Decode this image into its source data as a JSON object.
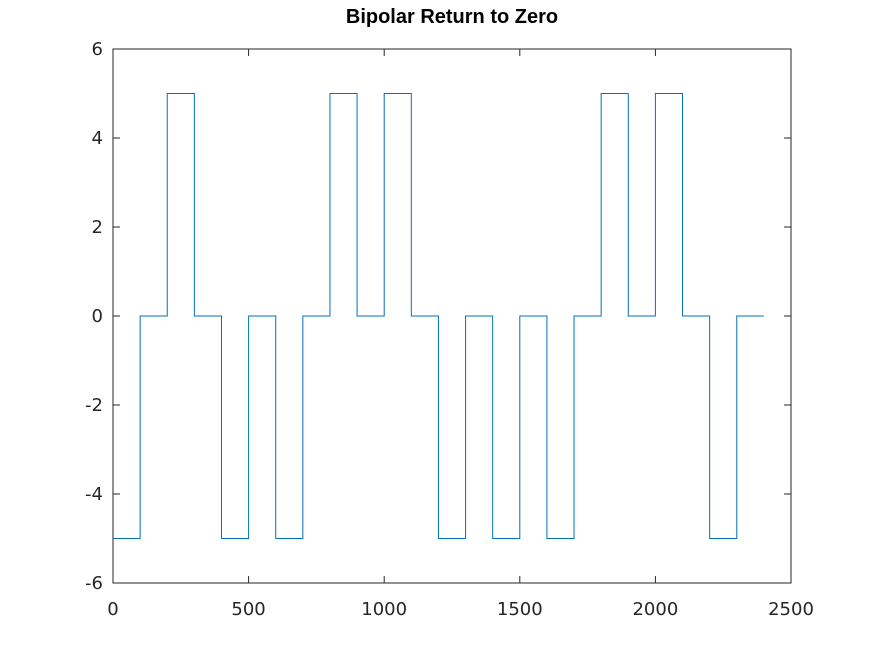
{
  "chart_data": {
    "type": "line",
    "title": "Bipolar Return to Zero",
    "xlabel": "",
    "ylabel": "",
    "xlim": [
      0,
      2500
    ],
    "ylim": [
      -6,
      6
    ],
    "xticks": [
      0,
      500,
      1000,
      1500,
      2000,
      2500
    ],
    "yticks": [
      -6,
      -4,
      -2,
      0,
      2,
      4,
      6
    ],
    "xtick_labels": [
      "0",
      "500",
      "1000",
      "1500",
      "2000",
      "2500"
    ],
    "ytick_labels": [
      "-6",
      "-4",
      "-2",
      "0",
      "2",
      "4",
      "6"
    ],
    "grid": false,
    "step": true,
    "series": [
      {
        "color": "#0072bd",
        "x": [
          0,
          100,
          100,
          200,
          200,
          300,
          300,
          400,
          400,
          500,
          500,
          600,
          600,
          700,
          700,
          800,
          800,
          900,
          900,
          1000,
          1000,
          1100,
          1100,
          1200,
          1200,
          1300,
          1300,
          1400,
          1400,
          1500,
          1500,
          1600,
          1600,
          1700,
          1700,
          1800,
          1800,
          1900,
          1900,
          2000,
          2000,
          2100,
          2100,
          2200,
          2200,
          2300,
          2300,
          2400
        ],
        "y": [
          -5,
          -5,
          0,
          0,
          5,
          5,
          0,
          0,
          -5,
          -5,
          0,
          0,
          -5,
          -5,
          0,
          0,
          5,
          5,
          0,
          0,
          5,
          5,
          0,
          0,
          -5,
          -5,
          0,
          0,
          -5,
          -5,
          0,
          0,
          -5,
          -5,
          0,
          0,
          5,
          5,
          0,
          0,
          5,
          5,
          0,
          0,
          -5,
          -5,
          0,
          0
        ]
      }
    ]
  }
}
